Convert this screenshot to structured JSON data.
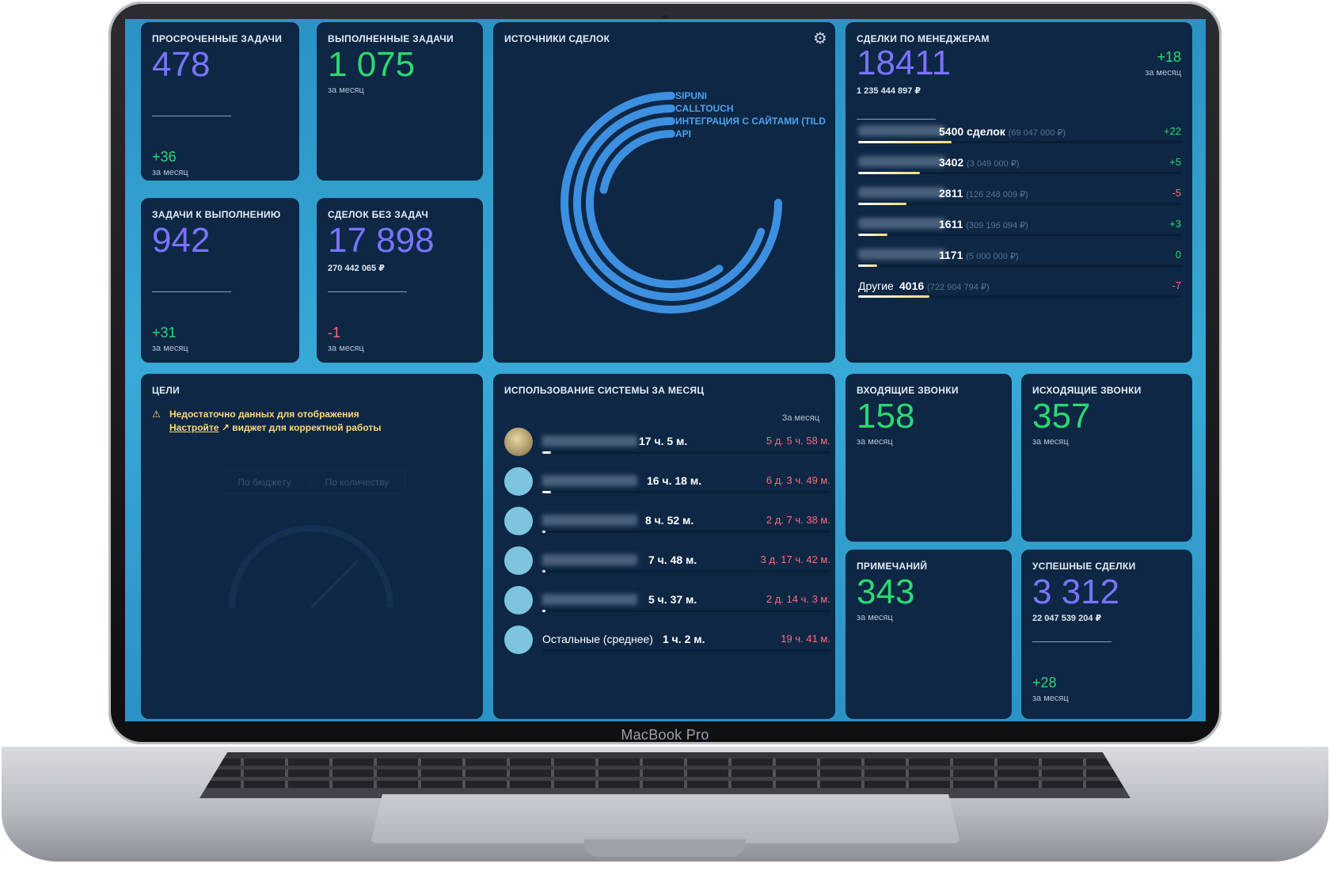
{
  "device": {
    "brand": "MacBook Pro"
  },
  "cards": {
    "overdue": {
      "title": "ПРОСРОЧЕННЫЕ ЗАДАЧИ",
      "value": "478",
      "delta": "+36",
      "period": "за месяц"
    },
    "done": {
      "title": "ВЫПОЛНЕННЫЕ ЗАДАЧИ",
      "value": "1 075",
      "period": "за месяц"
    },
    "todo": {
      "title": "ЗАДАЧИ К ВЫПОЛНЕНИЮ",
      "value": "942",
      "delta": "+31",
      "period": "за месяц"
    },
    "no_tasks": {
      "title": "СДЕЛОК БЕЗ ЗАДАЧ",
      "value": "17 898",
      "sum": "270 442 065 ₽",
      "delta": "-1",
      "period": "за месяц"
    },
    "sources": {
      "title": "ИСТОЧНИКИ СДЕЛОК",
      "gear_icon": "gear-icon"
    },
    "managers": {
      "title": "СДЕЛКИ ПО МЕНЕДЖЕРАМ",
      "value": "18411",
      "sum": "1 235 444 897 ₽",
      "delta": "+18",
      "period": "за месяц"
    },
    "goals": {
      "title": "ЦЕЛИ",
      "warning": "Недостаточно данных для отображения",
      "link": "Настройте",
      "suffix": "виджет для корректной работы",
      "tab_budget": "По бюджету",
      "tab_count": "По количеству"
    },
    "usage": {
      "title": "ИСПОЛЬЗОВАНИЕ СИСТЕМЫ ЗА МЕСЯЦ",
      "period_label": "За месяц"
    },
    "incoming": {
      "title": "ВХОДЯЩИЕ ЗВОНКИ",
      "value": "158",
      "period": "за месяц"
    },
    "outgoing": {
      "title": "ИСХОДЯЩИЕ ЗВОНКИ",
      "value": "357",
      "period": "за месяц"
    },
    "notes": {
      "title": "ПРИМЕЧАНИЙ",
      "value": "343",
      "period": "за месяц"
    },
    "success": {
      "title": "УСПЕШНЫЕ СДЕЛКИ",
      "value": "3 312",
      "sum": "22 047 539 204 ₽",
      "delta": "+28",
      "period": "за месяц"
    }
  },
  "chart_data": {
    "type": "radial-bar",
    "series": [
      {
        "name": "SIPUNI",
        "fraction": 0.75
      },
      {
        "name": "CALLTOUCH",
        "fraction": 0.7
      },
      {
        "name": "ИНТЕГРАЦИЯ С САЙТАМИ (TILD",
        "fraction": 0.6
      },
      {
        "name": "API",
        "fraction": 0.22
      }
    ],
    "color": "#3d8fe0"
  },
  "managers": [
    {
      "count": "5400 сделок",
      "amount": "(69 047 000 ₽)",
      "delta": "+22",
      "fill": 0.29
    },
    {
      "count": "3402",
      "amount": "(3 049 000 ₽)",
      "delta": "+5",
      "fill": 0.19
    },
    {
      "count": "2811",
      "amount": "(126 248 009 ₽)",
      "delta": "-5",
      "fill": 0.15
    },
    {
      "count": "1611",
      "amount": "(309 196 094 ₽)",
      "delta": "+3",
      "fill": 0.09
    },
    {
      "count": "1171",
      "amount": "(5 000 000 ₽)",
      "delta": "0",
      "fill": 0.06
    },
    {
      "name": "Другие",
      "count": "4016",
      "amount": "(722 904 794 ₽)",
      "delta": "-7",
      "fill": 0.22
    }
  ],
  "usage_rows": [
    {
      "time": "17 ч. 5 м.",
      "right": "5 д. 5 ч. 58 м.",
      "fill": 0.03
    },
    {
      "time": "16 ч. 18 м.",
      "right": "6 д. 3 ч. 49 м.",
      "fill": 0.03
    },
    {
      "time": "8 ч. 52 м.",
      "right": "2 д. 7 ч. 38 м.",
      "fill": 0.01
    },
    {
      "time": "7 ч. 48 м.",
      "right": "3 д. 17 ч. 42 м.",
      "fill": 0.01
    },
    {
      "time": "5 ч. 37 м.",
      "right": "2 д. 14 ч. 3 м.",
      "fill": 0.01
    },
    {
      "name": "Остальные (среднее)",
      "time": "1 ч. 2 м.",
      "right": "19 ч. 41 м.",
      "fill": 0.0
    }
  ]
}
